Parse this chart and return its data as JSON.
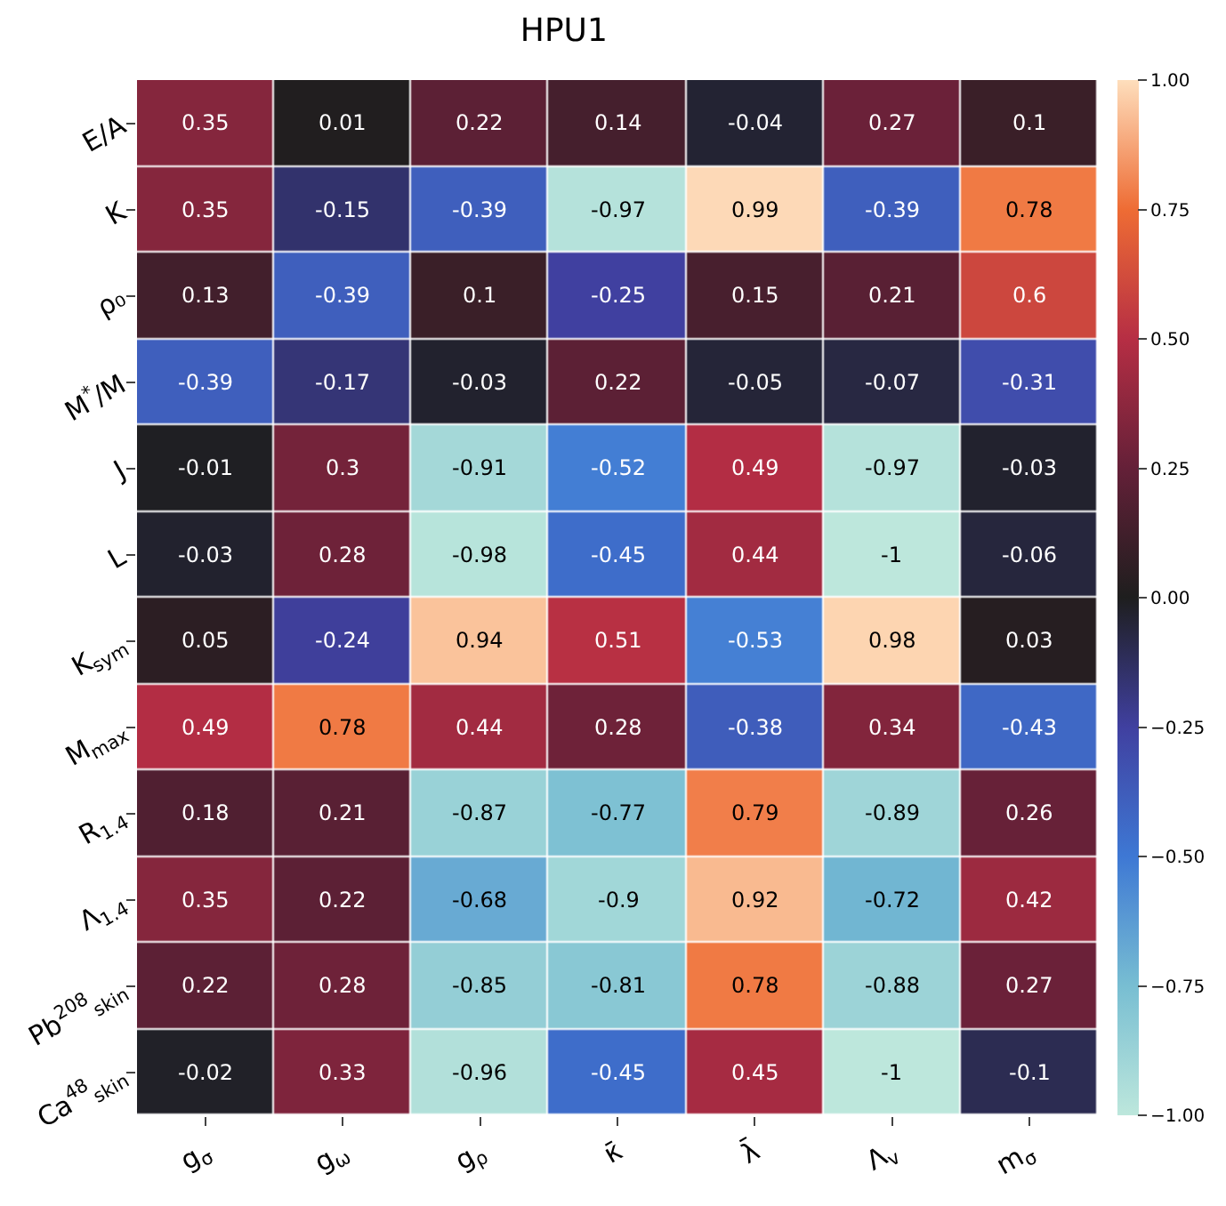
{
  "chart_data": {
    "type": "heatmap",
    "title": "HPU1",
    "categories": [
      "g$_{σ}$",
      "g$_{ω}$",
      "g$_{ρ}$",
      "κ̄",
      "λ̄",
      "Λ$_{v}$",
      "m$_{σ}$"
    ],
    "y_categories": [
      "E/A",
      "K",
      "ρ₀",
      "M$^{*}$/M",
      "J",
      "L",
      "K$_{sym}$",
      "M$_{max}$",
      "R$_{1.4}$",
      "Λ$_{1.4}$",
      "Pb$^{208}$$_{skin}$",
      "Ca$^{48}$$_{skin}$"
    ],
    "cells": [
      [
        0.35,
        0.01,
        0.22,
        0.14,
        -0.04,
        0.27,
        0.1
      ],
      [
        0.35,
        -0.15,
        -0.39,
        -0.97,
        0.99,
        -0.39,
        0.78
      ],
      [
        0.13,
        -0.39,
        0.1,
        -0.25,
        0.15,
        0.21,
        0.6
      ],
      [
        -0.39,
        -0.17,
        -0.03,
        0.22,
        -0.05,
        -0.07,
        -0.31
      ],
      [
        -0.01,
        0.3,
        -0.91,
        -0.52,
        0.49,
        -0.97,
        -0.03
      ],
      [
        -0.03,
        0.28,
        -0.98,
        -0.45,
        0.44,
        -1,
        -0.06
      ],
      [
        0.05,
        -0.24,
        0.94,
        0.51,
        -0.53,
        0.98,
        0.03
      ],
      [
        0.49,
        0.78,
        0.44,
        0.28,
        -0.38,
        0.34,
        -0.43
      ],
      [
        0.18,
        0.21,
        -0.87,
        -0.77,
        0.79,
        -0.89,
        0.26
      ],
      [
        0.35,
        0.22,
        -0.68,
        -0.9,
        0.92,
        -0.72,
        0.42
      ],
      [
        0.22,
        0.28,
        -0.85,
        -0.81,
        0.78,
        -0.88,
        0.27
      ],
      [
        -0.02,
        0.33,
        -0.96,
        -0.45,
        0.45,
        -1,
        -0.1
      ]
    ],
    "data_labels": true,
    "clim": [
      -1,
      1
    ],
    "cticks": [
      {
        "value": 1,
        "label": "1.00"
      },
      {
        "value": 0.75,
        "label": "0.75"
      },
      {
        "value": 0.5,
        "label": "0.50"
      },
      {
        "value": 0.25,
        "label": "0.25"
      },
      {
        "value": 0,
        "label": "0.00"
      },
      {
        "value": -0.25,
        "label": "−0.25"
      },
      {
        "value": -0.5,
        "label": "−0.50"
      },
      {
        "value": -0.75,
        "label": "−0.75"
      },
      {
        "value": -1,
        "label": "−1.00"
      }
    ]
  }
}
